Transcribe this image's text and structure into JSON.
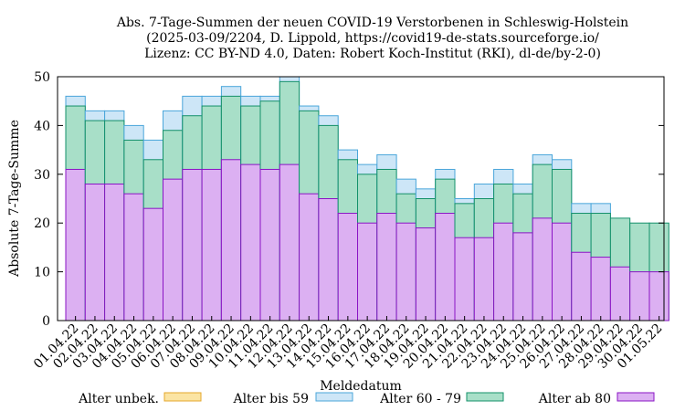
{
  "chart_data": {
    "type": "bar",
    "stacked": true,
    "title": [
      "Abs. 7-Tage-Summen der neuen COVID-19 Verstorbenen in Schleswig-Holstein",
      "(2025-03-09/2204, D. Lippold, https://covid19-de-stats.sourceforge.io/",
      "Lizenz: CC BY-ND 4.0, Daten: Robert Koch-Institut (RKI), dl-de/by-2-0)"
    ],
    "xlabel": "Meldedatum",
    "ylabel": "Absolute 7-Tage-Summe",
    "ylim": [
      0,
      50
    ],
    "yticks": [
      0,
      10,
      20,
      30,
      40,
      50
    ],
    "grid": false,
    "legend_position": "bottom",
    "categories": [
      "01.04.22",
      "02.04.22",
      "03.04.22",
      "04.04.22",
      "05.04.22",
      "06.04.22",
      "07.04.22",
      "08.04.22",
      "09.04.22",
      "10.04.22",
      "11.04.22",
      "12.04.22",
      "13.04.22",
      "14.04.22",
      "15.04.22",
      "16.04.22",
      "17.04.22",
      "18.04.22",
      "19.04.22",
      "20.04.22",
      "21.04.22",
      "22.04.22",
      "23.04.22",
      "24.04.22",
      "25.04.22",
      "26.04.22",
      "27.04.22",
      "28.04.22",
      "29.04.22",
      "30.04.22",
      "01.05.22"
    ],
    "series": [
      {
        "name": "Alter ab 80",
        "fill": "#dcb0f2",
        "stroke": "#8a14c4",
        "values": [
          31,
          28,
          28,
          26,
          23,
          29,
          31,
          31,
          33,
          32,
          31,
          32,
          26,
          25,
          22,
          20,
          22,
          20,
          19,
          22,
          17,
          17,
          20,
          18,
          21,
          20,
          14,
          13,
          11,
          10,
          10
        ]
      },
      {
        "name": "Alter 60 - 79",
        "fill": "#a8dfc8",
        "stroke": "#13906a",
        "values": [
          13,
          13,
          13,
          11,
          10,
          10,
          11,
          13,
          13,
          12,
          14,
          17,
          17,
          15,
          11,
          10,
          9,
          6,
          6,
          7,
          7,
          8,
          8,
          8,
          11,
          11,
          8,
          9,
          10,
          10,
          10
        ]
      },
      {
        "name": "Alter bis 59",
        "fill": "#cde6f7",
        "stroke": "#4aa6da",
        "values": [
          2,
          2,
          2,
          3,
          4,
          4,
          4,
          2,
          2,
          2,
          1,
          1,
          1,
          2,
          2,
          2,
          3,
          3,
          2,
          2,
          1,
          3,
          3,
          2,
          2,
          2,
          2,
          2,
          0,
          0,
          0
        ]
      },
      {
        "name": "Alter unbek.",
        "fill": "#fbe4a3",
        "stroke": "#e4a72b",
        "values": [
          0,
          0,
          0,
          0,
          0,
          0,
          0,
          0,
          0,
          0,
          0,
          0,
          0,
          0,
          0,
          0,
          0,
          0,
          0,
          0,
          0,
          0,
          0,
          0,
          0,
          0,
          0,
          0,
          0,
          0,
          0
        ]
      }
    ],
    "legend_order": [
      "Alter unbek.",
      "Alter bis 59",
      "Alter 60 - 79",
      "Alter ab 80"
    ]
  }
}
